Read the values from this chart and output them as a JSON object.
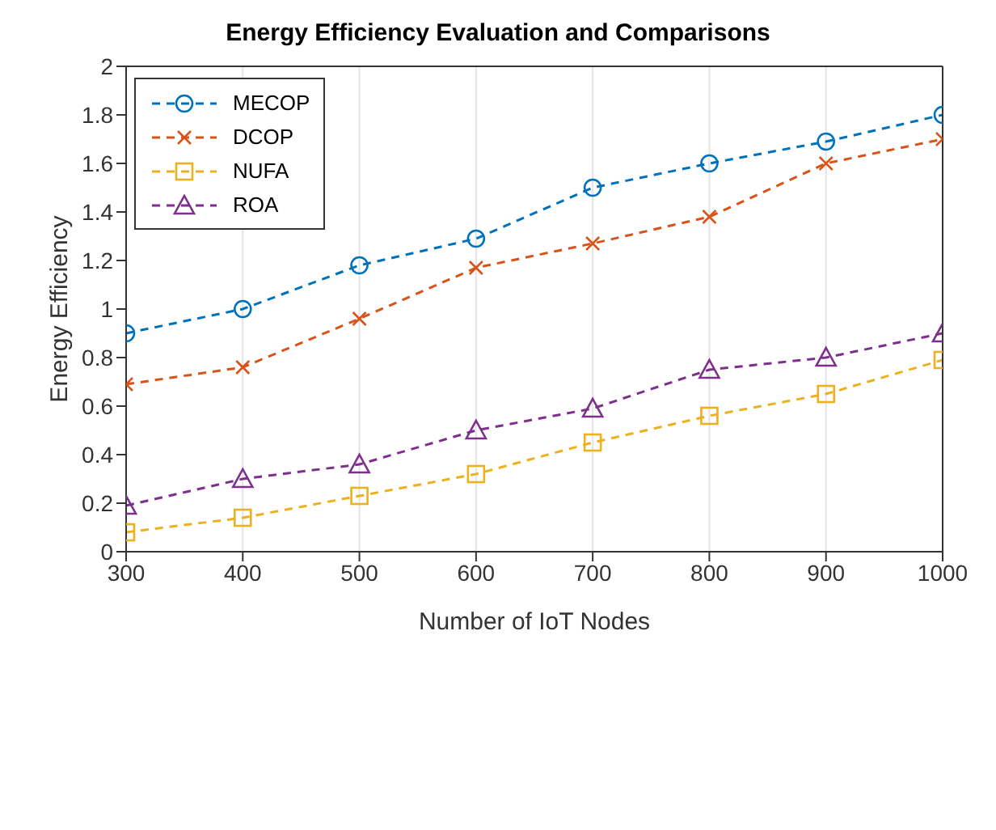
{
  "chart_data": {
    "type": "line",
    "title": "Energy Efficiency Evaluation and Comparisons",
    "xlabel": "Number of IoT Nodes",
    "ylabel": "Energy Efficiency",
    "x": [
      300,
      400,
      500,
      600,
      700,
      800,
      900,
      1000
    ],
    "series": [
      {
        "name": "MECOP",
        "color": "#0072bd",
        "marker": "circle",
        "values": [
          0.9,
          1.0,
          1.18,
          1.29,
          1.5,
          1.6,
          1.69,
          1.8
        ]
      },
      {
        "name": "DCOP",
        "color": "#d95319",
        "marker": "cross",
        "values": [
          0.69,
          0.76,
          0.96,
          1.17,
          1.27,
          1.38,
          1.6,
          1.7
        ]
      },
      {
        "name": "NUFA",
        "color": "#edb120",
        "marker": "square",
        "values": [
          0.08,
          0.14,
          0.23,
          0.32,
          0.45,
          0.56,
          0.65,
          0.79
        ]
      },
      {
        "name": "ROA",
        "color": "#7e2f8e",
        "marker": "triangle",
        "values": [
          0.19,
          0.3,
          0.36,
          0.5,
          0.59,
          0.75,
          0.8,
          0.9
        ]
      }
    ],
    "xlim": [
      300,
      1000
    ],
    "xticks": [
      300,
      400,
      500,
      600,
      700,
      800,
      900,
      1000
    ],
    "ylim": [
      0,
      2
    ],
    "yticks": [
      0,
      0.2,
      0.4,
      0.6,
      0.8,
      1,
      1.2,
      1.4,
      1.6,
      1.8,
      2
    ],
    "grid": true,
    "legend": "top left",
    "line_style": "dashed"
  }
}
